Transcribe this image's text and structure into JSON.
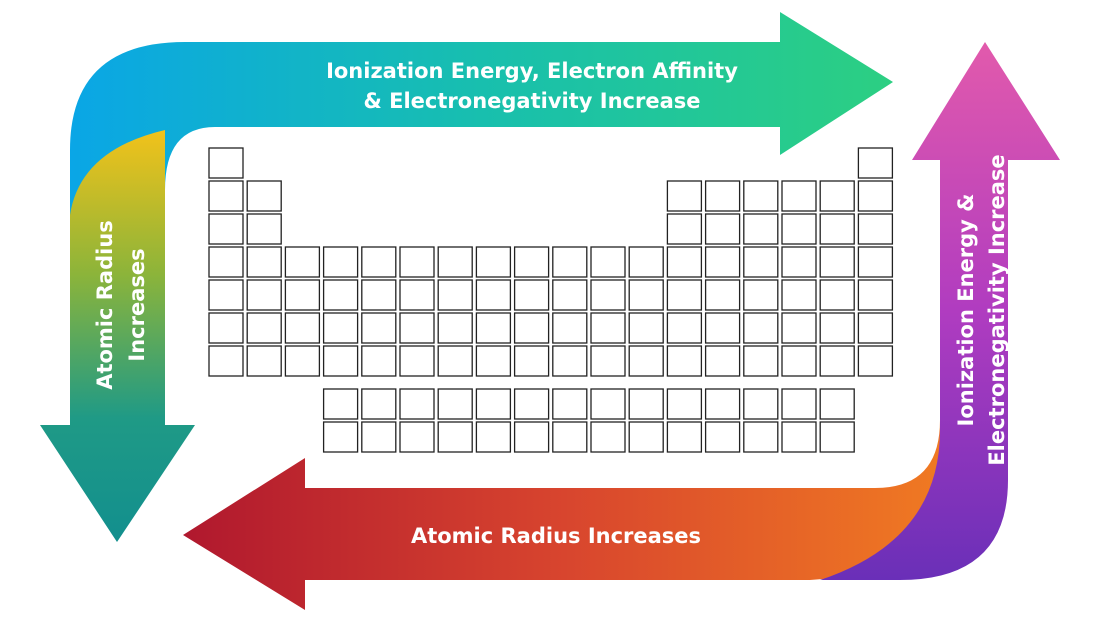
{
  "arrows": {
    "top": {
      "lines": [
        "Ionization Energy, Electron Affinity",
        "& Electronegativity Increase"
      ]
    },
    "left": {
      "lines": [
        "Atomic Radius",
        "Increases"
      ]
    },
    "right": {
      "lines": [
        "Ionization Energy &",
        "Electronegativity Increase"
      ]
    },
    "bottom": {
      "lines": [
        "Atomic Radius Increases"
      ]
    }
  }
}
